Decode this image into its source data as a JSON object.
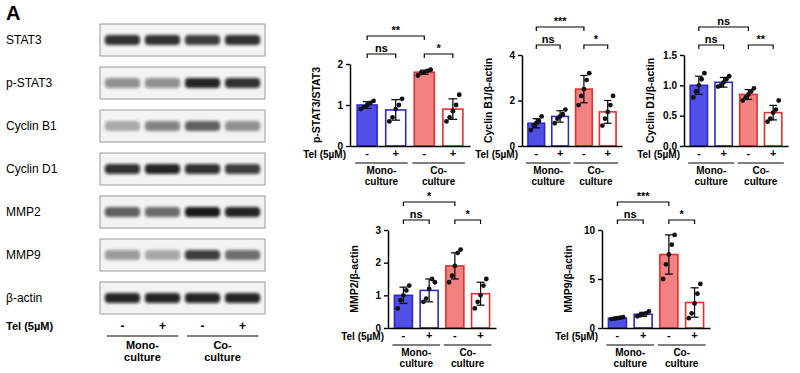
{
  "panel": "A",
  "blot": {
    "rows": [
      {
        "label": "STAT3",
        "intensity": [
          0.85,
          0.85,
          0.8,
          0.85
        ]
      },
      {
        "label": "p-STAT3",
        "intensity": [
          0.45,
          0.45,
          0.9,
          0.85
        ]
      },
      {
        "label": "Cyclin B1",
        "intensity": [
          0.3,
          0.5,
          0.65,
          0.45
        ]
      },
      {
        "label": "Cyclin D1",
        "intensity": [
          0.85,
          0.9,
          0.85,
          0.8
        ]
      },
      {
        "label": "MMP2",
        "intensity": [
          0.65,
          0.6,
          0.95,
          0.9
        ]
      },
      {
        "label": "MMP9",
        "intensity": [
          0.4,
          0.35,
          0.8,
          0.6
        ]
      },
      {
        "label": "β-actin",
        "intensity": [
          0.9,
          0.9,
          0.9,
          0.9
        ]
      }
    ],
    "treatment": "Tel (5µM)",
    "signs": [
      "-",
      "+",
      "-",
      "+"
    ],
    "groups": [
      "Mono-culture",
      "Co-culture"
    ]
  },
  "chart_data": [
    {
      "type": "bar",
      "y_label": "p-STAT3/STAT3",
      "x_label": "Tel (5µM)",
      "categories": [
        "-",
        "+",
        "-",
        "+"
      ],
      "groups": [
        "Mono-culture",
        "Co-culture"
      ],
      "values": [
        1.0,
        0.88,
        1.8,
        0.9
      ],
      "errors": [
        0.08,
        0.25,
        0.05,
        0.25
      ],
      "points": [
        [
          0.9,
          0.95,
          1.0,
          1.05,
          1.1
        ],
        [
          0.6,
          0.7,
          0.9,
          1.0,
          1.15
        ],
        [
          1.72,
          1.78,
          1.8,
          1.83,
          1.86
        ],
        [
          0.6,
          0.7,
          0.85,
          1.0,
          1.25
        ]
      ],
      "colors": [
        "#5050e6",
        "#ffffff",
        "#f28282",
        "#ffffff"
      ],
      "ylim": [
        0,
        2
      ],
      "yticks": [
        0,
        1,
        2
      ],
      "annotations": [
        {
          "text": "**",
          "between": [
            0,
            2
          ]
        },
        {
          "text": "ns",
          "between": [
            0,
            1
          ]
        },
        {
          "text": "*",
          "between": [
            2,
            3
          ]
        }
      ]
    },
    {
      "type": "bar",
      "y_label": "Cyclin B1/β-actin",
      "x_label": "Tel (5µM)",
      "categories": [
        "-",
        "+",
        "-",
        "+"
      ],
      "groups": [
        "Mono-culture",
        "Co-culture"
      ],
      "values": [
        1.0,
        1.3,
        2.5,
        1.5
      ],
      "errors": [
        0.2,
        0.25,
        0.6,
        0.5
      ],
      "points": [
        [
          0.7,
          0.9,
          1.0,
          1.1,
          1.3
        ],
        [
          1.0,
          1.2,
          1.3,
          1.4,
          1.6
        ],
        [
          1.8,
          2.2,
          2.5,
          2.9,
          3.2
        ],
        [
          0.9,
          1.2,
          1.5,
          1.8,
          2.2
        ]
      ],
      "colors": [
        "#5050e6",
        "#ffffff",
        "#f28282",
        "#ffffff"
      ],
      "ylim": [
        0,
        4
      ],
      "yticks": [
        0,
        2,
        4
      ],
      "annotations": [
        {
          "text": "***",
          "between": [
            0,
            2
          ]
        },
        {
          "text": "ns",
          "between": [
            0,
            1
          ]
        },
        {
          "text": "*",
          "between": [
            2,
            3
          ]
        }
      ]
    },
    {
      "type": "bar",
      "y_label": "Cyclin D1/β-actin",
      "x_label": "Tel (5µM)",
      "categories": [
        "-",
        "+",
        "-",
        "+"
      ],
      "groups": [
        "Mono-culture",
        "Co-culture"
      ],
      "values": [
        1.0,
        1.05,
        0.85,
        0.55
      ],
      "errors": [
        0.15,
        0.08,
        0.08,
        0.12
      ],
      "points": [
        [
          0.8,
          0.9,
          1.0,
          1.1,
          1.2
        ],
        [
          0.98,
          1.0,
          1.05,
          1.1,
          1.15
        ],
        [
          0.75,
          0.8,
          0.85,
          0.9,
          0.95
        ],
        [
          0.4,
          0.45,
          0.55,
          0.6,
          0.75
        ]
      ],
      "colors": [
        "#5050e6",
        "#ffffff",
        "#f28282",
        "#ffffff"
      ],
      "ylim": [
        0,
        1.5
      ],
      "yticks": [
        {
          "value": 0,
          "label": "0.0"
        },
        0.5,
        {
          "value": 1,
          "label": "1.0"
        },
        1.5
      ],
      "annotations": [
        {
          "text": "ns",
          "between": [
            0,
            2
          ]
        },
        {
          "text": "ns",
          "between": [
            0,
            1
          ]
        },
        {
          "text": "**",
          "between": [
            2,
            3
          ]
        }
      ]
    },
    {
      "type": "bar",
      "y_label": "MMP2/β-actin",
      "x_label": "Tel (5µM)",
      "categories": [
        "-",
        "+",
        "-",
        "+"
      ],
      "groups": [
        "Mono-culture",
        "Co-culture"
      ],
      "values": [
        1.0,
        1.15,
        1.9,
        1.05
      ],
      "errors": [
        0.25,
        0.35,
        0.4,
        0.35
      ],
      "points": [
        [
          0.6,
          0.85,
          1.0,
          1.15,
          1.3
        ],
        [
          0.8,
          0.9,
          1.2,
          1.5,
          1.4
        ],
        [
          1.4,
          1.6,
          1.9,
          2.3,
          2.4
        ],
        [
          0.6,
          0.8,
          1.0,
          1.3,
          1.5
        ]
      ],
      "colors": [
        "#5050e6",
        "#ffffff",
        "#f28282",
        "#ffffff"
      ],
      "ylim": [
        0,
        3
      ],
      "yticks": [
        0,
        1,
        2,
        3
      ],
      "annotations": [
        {
          "text": "*",
          "between": [
            0,
            2
          ]
        },
        {
          "text": "ns",
          "between": [
            0,
            1
          ]
        },
        {
          "text": "*",
          "between": [
            2,
            3
          ]
        }
      ]
    },
    {
      "type": "bar",
      "y_label": "MMP9/β-actin",
      "x_label": "Tel (5µM)",
      "categories": [
        "-",
        "+",
        "-",
        "+"
      ],
      "groups": [
        "Mono-culture",
        "Co-culture"
      ],
      "values": [
        1.0,
        1.4,
        7.5,
        2.6
      ],
      "errors": [
        0.1,
        0.2,
        2.0,
        1.5
      ],
      "points": [
        [
          0.9,
          0.95,
          1.0,
          1.05,
          1.1
        ],
        [
          1.2,
          1.3,
          1.4,
          1.5,
          1.7
        ],
        [
          5.0,
          6.5,
          7.5,
          8.5,
          9.5
        ],
        [
          1.0,
          1.5,
          2.5,
          3.5,
          4.5
        ]
      ],
      "colors": [
        "#5050e6",
        "#ffffff",
        "#f28282",
        "#ffffff"
      ],
      "ylim": [
        0,
        10
      ],
      "yticks": [
        0,
        5,
        10
      ],
      "annotations": [
        {
          "text": "***",
          "between": [
            0,
            2
          ]
        },
        {
          "text": "ns",
          "between": [
            0,
            1
          ]
        },
        {
          "text": "*",
          "between": [
            2,
            3
          ]
        }
      ]
    }
  ]
}
